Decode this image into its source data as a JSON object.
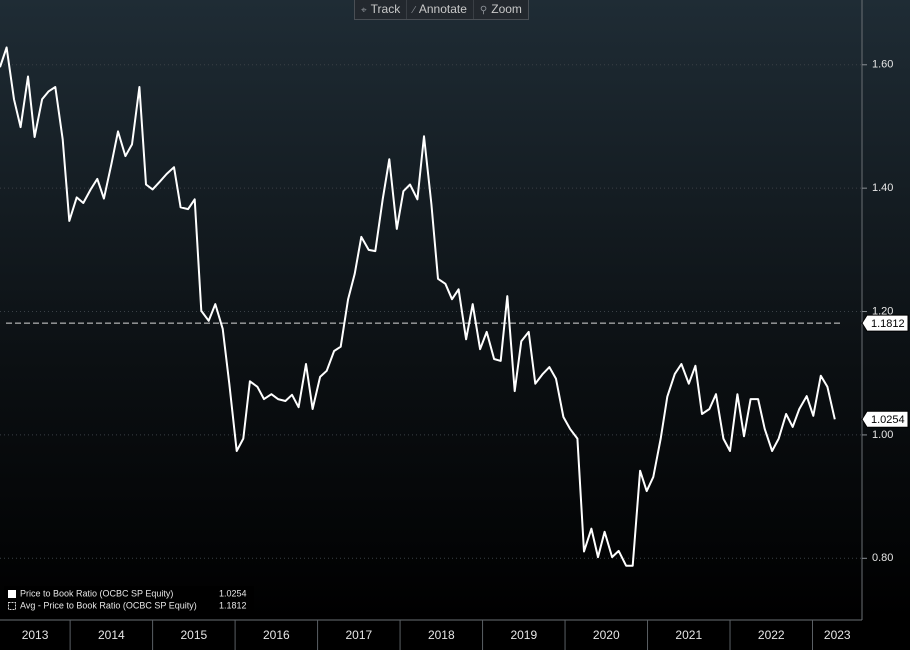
{
  "toolbar": [
    "Track",
    "Annotate",
    "Zoom"
  ],
  "chart_data": {
    "type": "line",
    "xlim": [
      2013.15,
      2023.6
    ],
    "xticks": [
      2013,
      2014,
      2015,
      2016,
      2017,
      2018,
      2019,
      2020,
      2021,
      2022,
      2023
    ],
    "ylim": [
      0.7,
      1.705
    ],
    "yticks": [
      {
        "value": 0.8,
        "label": "0.80"
      },
      {
        "value": 1.0,
        "label": "1.00"
      },
      {
        "value": 1.2,
        "label": "1.20"
      },
      {
        "value": 1.4,
        "label": "1.40"
      },
      {
        "value": 1.6,
        "label": "1.60"
      }
    ],
    "grid": true,
    "legend": "bottom-left",
    "x": [
      2013.15,
      2013.23,
      2013.32,
      2013.4,
      2013.49,
      2013.57,
      2013.66,
      2013.74,
      2013.82,
      2013.91,
      2013.99,
      2014.08,
      2014.16,
      2014.25,
      2014.33,
      2014.41,
      2014.5,
      2014.58,
      2014.67,
      2014.75,
      2014.84,
      2014.92,
      2015.0,
      2015.09,
      2015.17,
      2015.26,
      2015.34,
      2015.43,
      2015.51,
      2015.59,
      2015.68,
      2015.76,
      2015.85,
      2015.93,
      2016.02,
      2016.1,
      2016.18,
      2016.27,
      2016.35,
      2016.44,
      2016.52,
      2016.61,
      2016.69,
      2016.77,
      2016.86,
      2016.94,
      2017.03,
      2017.11,
      2017.2,
      2017.28,
      2017.37,
      2017.45,
      2017.53,
      2017.62,
      2017.7,
      2017.79,
      2017.87,
      2017.96,
      2018.04,
      2018.12,
      2018.21,
      2018.29,
      2018.38,
      2018.46,
      2018.55,
      2018.63,
      2018.71,
      2018.8,
      2018.88,
      2018.97,
      2019.05,
      2019.14,
      2019.22,
      2019.3,
      2019.39,
      2019.47,
      2019.56,
      2019.64,
      2019.73,
      2019.81,
      2019.89,
      2019.98,
      2020.06,
      2020.15,
      2020.23,
      2020.32,
      2020.4,
      2020.48,
      2020.57,
      2020.65,
      2020.74,
      2020.82,
      2020.91,
      2020.99,
      2021.07,
      2021.16,
      2021.24,
      2021.33,
      2021.41,
      2021.5,
      2021.58,
      2021.66,
      2021.75,
      2021.83,
      2021.92,
      2022.0,
      2022.09,
      2022.17,
      2022.25,
      2022.34,
      2022.42,
      2022.51,
      2022.59,
      2022.68,
      2022.76,
      2022.84,
      2022.93,
      2023.01,
      2023.1,
      2023.18,
      2023.27
    ],
    "series": [
      {
        "name": "Price to Book Ratio (OCBC SP Equity)",
        "color": "#ffffff",
        "values": [
          1.596,
          1.628,
          1.544,
          1.499,
          1.581,
          1.483,
          1.544,
          1.557,
          1.564,
          1.479,
          1.347,
          1.385,
          1.376,
          1.398,
          1.415,
          1.383,
          1.439,
          1.492,
          1.452,
          1.471,
          1.564,
          1.406,
          1.398,
          1.411,
          1.423,
          1.434,
          1.369,
          1.366,
          1.382,
          1.201,
          1.185,
          1.212,
          1.172,
          1.083,
          0.974,
          0.994,
          1.087,
          1.078,
          1.058,
          1.066,
          1.058,
          1.055,
          1.065,
          1.045,
          1.115,
          1.042,
          1.094,
          1.104,
          1.136,
          1.143,
          1.22,
          1.261,
          1.321,
          1.3,
          1.298,
          1.382,
          1.447,
          1.334,
          1.395,
          1.406,
          1.382,
          1.484,
          1.374,
          1.253,
          1.245,
          1.22,
          1.236,
          1.155,
          1.212,
          1.139,
          1.167,
          1.123,
          1.12,
          1.225,
          1.071,
          1.152,
          1.167,
          1.083,
          1.099,
          1.11,
          1.091,
          1.029,
          1.01,
          0.994,
          0.811,
          0.848,
          0.802,
          0.843,
          0.802,
          0.812,
          0.788,
          0.788,
          0.942,
          0.909,
          0.932,
          0.994,
          1.062,
          1.099,
          1.115,
          1.083,
          1.112,
          1.034,
          1.042,
          1.066,
          0.994,
          0.974,
          1.066,
          0.998,
          1.058,
          1.058,
          1.01,
          0.974,
          0.994,
          1.034,
          1.013,
          1.042,
          1.063,
          1.031,
          1.096,
          1.078,
          1.0254
        ]
      }
    ],
    "reference_lines": [
      {
        "name": "Avg - Price to Book Ratio (OCBC SP Equity)",
        "value": 1.1812,
        "color": "#d8d8d8"
      }
    ]
  }
}
